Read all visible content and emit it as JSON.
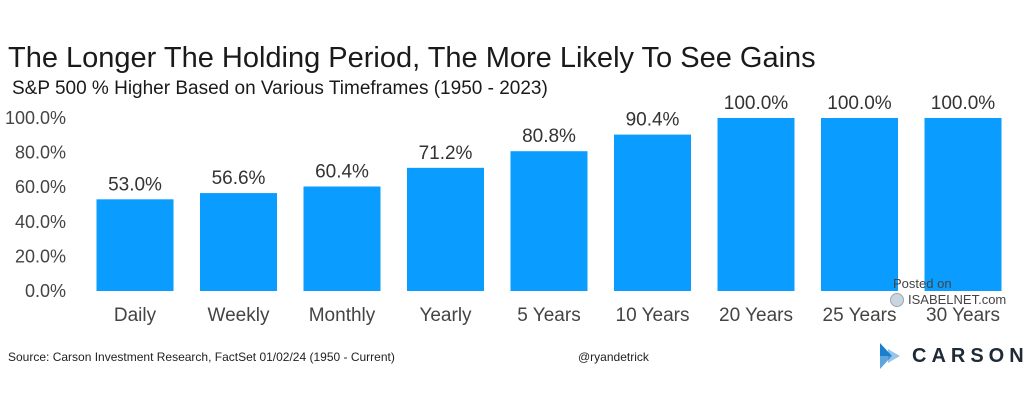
{
  "chart_data": {
    "type": "bar",
    "title": "The Longer The Holding Period, The More Likely To See Gains",
    "subtitle": "S&P 500 % Higher Based on Various Timeframes (1950 - 2023)",
    "categories": [
      "Daily",
      "Weekly",
      "Monthly",
      "Yearly",
      "5 Years",
      "10 Years",
      "20 Years",
      "25 Years",
      "30 Years"
    ],
    "values": [
      53.0,
      56.6,
      60.4,
      71.2,
      80.8,
      90.4,
      100.0,
      100.0,
      100.0
    ],
    "data_labels": [
      "53.0%",
      "56.6%",
      "60.4%",
      "71.2%",
      "80.8%",
      "90.4%",
      "100.0%",
      "100.0%",
      "100.0%"
    ],
    "yticks": [
      0,
      20,
      40,
      60,
      80,
      100
    ],
    "ytick_labels": [
      "0.0%",
      "20.0%",
      "40.0%",
      "60.0%",
      "80.0%",
      "100.0%"
    ],
    "ylim": [
      0,
      100
    ],
    "xlabel": "",
    "ylabel": "",
    "grid": false,
    "bar_color": "#0a9dff"
  },
  "footer": {
    "source": "Source: Carson Investment Research, FactSet 01/02/24 (1950 - Current)",
    "handle": "@ryandetrick"
  },
  "watermark": {
    "posted": "Posted on",
    "site": "ISABELNET.com"
  },
  "brand": {
    "name": "CARSON",
    "mark_color": "#1a7fd0"
  }
}
